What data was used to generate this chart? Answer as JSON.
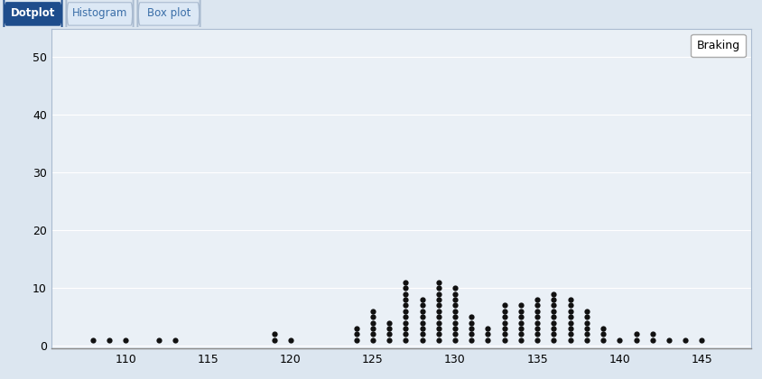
{
  "dot_counts": {
    "108": 1,
    "109": 1,
    "110": 1,
    "112": 1,
    "113": 1,
    "119": 2,
    "120": 1,
    "124": 3,
    "125": 6,
    "126": 4,
    "127": 11,
    "128": 8,
    "129": 11,
    "130": 10,
    "131": 5,
    "132": 3,
    "133": 7,
    "134": 7,
    "135": 8,
    "136": 9,
    "137": 8,
    "138": 6,
    "139": 3,
    "140": 1,
    "141": 2,
    "142": 2,
    "143": 1,
    "144": 1,
    "145": 1
  },
  "xlim": [
    105.5,
    148
  ],
  "ylim": [
    -0.5,
    55
  ],
  "xticks": [
    110,
    115,
    120,
    125,
    130,
    135,
    140,
    145
  ],
  "yticks": [
    0,
    10,
    20,
    30,
    40,
    50
  ],
  "legend_label": "Braking",
  "outer_bg_color": "#dce6f0",
  "plot_bg_color": "#eaf0f6",
  "dot_color": "#111111",
  "dot_size": 4.5,
  "tab_labels": [
    "Dotplot",
    "Histogram",
    "Box plot"
  ],
  "tab_active": 0,
  "tab_active_color": "#1e4d8c",
  "tab_inactive_color": "#dce8f5",
  "tab_text_color_active": "#ffffff",
  "tab_text_color_inactive": "#3a6ea8",
  "border_color": "#aabbd0"
}
